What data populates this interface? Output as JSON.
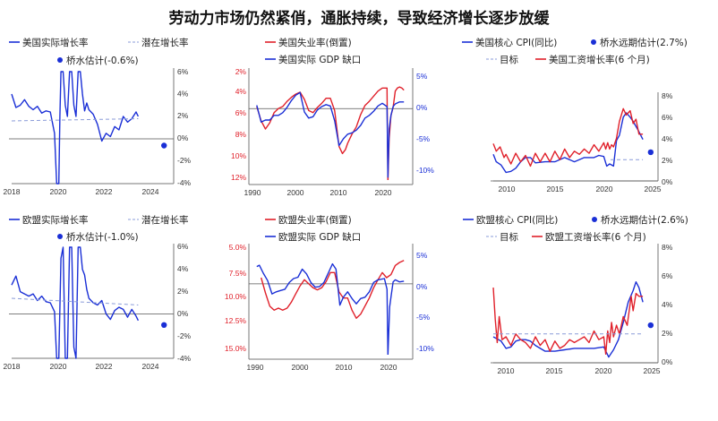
{
  "title": "劳动力市场仍然紧俏，通胀持续，导致经济增长逐步放缓",
  "colors": {
    "blue": "#1a2fd6",
    "red": "#e0202a",
    "axis": "#777777",
    "zero": "#555555",
    "dash": "#8a9bd8"
  },
  "chart_data": [
    {
      "id": "us-growth",
      "type": "line",
      "legend": [
        "美国实际增长率",
        "潜在增长率",
        "桥水估计(-0.6%)"
      ],
      "x_ticks": [
        "2018",
        "2020",
        "2022",
        "2024"
      ],
      "xlim": [
        2018,
        2025.3
      ],
      "y_right_ticks": [
        "6%",
        "4%",
        "2%",
        "0%",
        "-2%",
        "-4%"
      ],
      "ylim_right": [
        -4,
        6
      ],
      "series": [
        {
          "name": "美国实际增长率",
          "color": "blue",
          "style": "solid",
          "x": [
            2018.0,
            2018.2,
            2018.4,
            2018.6,
            2018.8,
            2019.0,
            2019.2,
            2019.4,
            2019.6,
            2019.8,
            2020.0,
            2020.1,
            2020.2,
            2020.25,
            2020.3,
            2020.4,
            2020.5,
            2020.6,
            2020.7,
            2020.8,
            2020.9,
            2021.0,
            2021.1,
            2021.2,
            2021.3,
            2021.4,
            2021.5,
            2021.6,
            2021.8,
            2022.0,
            2022.2,
            2022.4,
            2022.6,
            2022.8,
            2023.0,
            2023.2,
            2023.4,
            2023.6,
            2023.8,
            2023.9
          ],
          "y": [
            4.0,
            2.8,
            3.0,
            3.5,
            2.9,
            2.6,
            2.9,
            2.3,
            2.5,
            2.4,
            0.5,
            -4,
            -4,
            2,
            6,
            6,
            3,
            2,
            6,
            6,
            3,
            2,
            6,
            6,
            4,
            2.5,
            3.2,
            2.6,
            2.2,
            1.3,
            -0.2,
            0.5,
            0.2,
            1.1,
            0.8,
            2.0,
            1.5,
            1.8,
            2.4,
            2.0
          ]
        },
        {
          "name": "潜在增长率",
          "color": "dash",
          "style": "dash",
          "x": [
            2018.0,
            2023.9
          ],
          "y": [
            1.6,
            1.8
          ]
        },
        {
          "name": "桥水估计(-0.6%)",
          "color": "blue",
          "style": "point",
          "x": [
            2025.1
          ],
          "y": [
            -0.6
          ]
        }
      ]
    },
    {
      "id": "us-labor",
      "type": "line",
      "legend": [
        "美国失业率(倒置)",
        "美国实际 GDP 缺口"
      ],
      "x_ticks": [
        "1990",
        "2000",
        "2010",
        "2020"
      ],
      "xlim": [
        1989,
        2025
      ],
      "y_left_ticks": [
        "2%",
        "4%",
        "6%",
        "8%",
        "10%",
        "12%"
      ],
      "ylim_left_inverted": [
        2,
        12.5
      ],
      "y_right_ticks": [
        "5%",
        "0%",
        "-5%",
        "-10%"
      ],
      "ylim_right": [
        -10.5,
        5.5
      ],
      "series": [
        {
          "name": "美国失业率(倒置)",
          "color": "red",
          "axis": "left",
          "x": [
            1990,
            1991,
            1992,
            1993,
            1994,
            1995,
            1996,
            1997,
            1998,
            1999,
            2000,
            2001,
            2002,
            2003,
            2004,
            2005,
            2006,
            2007,
            2008,
            2009,
            2009.8,
            2010.5,
            2011,
            2012,
            2013,
            2014,
            2015,
            2016,
            2017,
            2018,
            2019,
            2020.1,
            2020.3,
            2020.6,
            2021,
            2021.5,
            2022,
            2022.5,
            2023,
            2023.5,
            2024
          ],
          "y": [
            5.4,
            6.8,
            7.6,
            7.0,
            6.0,
            5.6,
            5.4,
            4.9,
            4.5,
            4.2,
            4.0,
            4.7,
            5.8,
            6.0,
            5.5,
            5.1,
            4.6,
            4.6,
            5.8,
            9.3,
            10.0,
            9.6,
            9.0,
            8.1,
            7.4,
            6.2,
            5.3,
            4.9,
            4.4,
            3.9,
            3.6,
            3.6,
            12.8,
            8.5,
            6.3,
            5.5,
            3.9,
            3.6,
            3.5,
            3.6,
            3.8
          ]
        },
        {
          "name": "美国实际 GDP 缺口",
          "color": "blue",
          "axis": "right",
          "x": [
            1990,
            1991,
            1992,
            1993,
            1994,
            1995,
            1996,
            1997,
            1998,
            1999,
            2000,
            2001,
            2002,
            2003,
            2004,
            2005,
            2006,
            2007,
            2008,
            2009,
            2010,
            2011,
            2012,
            2013,
            2014,
            2015,
            2016,
            2017,
            2018,
            2019,
            2020.1,
            2020.3,
            2020.6,
            2021,
            2021.5,
            2022,
            2023,
            2024
          ],
          "y": [
            0.5,
            -2.0,
            -1.7,
            -1.7,
            -1.0,
            -1.0,
            -0.6,
            0.2,
            1.2,
            2.0,
            2.4,
            -0.5,
            -1.4,
            -1.2,
            -0.2,
            0.3,
            0.6,
            0.4,
            -1.8,
            -5.5,
            -4.5,
            -3.8,
            -3.6,
            -3.2,
            -2.5,
            -1.4,
            -1.0,
            -0.4,
            0.4,
            0.8,
            0.3,
            -10.2,
            -3.0,
            -1.0,
            0.3,
            0.7,
            1.0,
            1.0
          ]
        }
      ]
    },
    {
      "id": "us-inflation",
      "type": "line",
      "legend": [
        "美国核心 CPI(同比)",
        "桥水远期估计(2.7%)",
        "目标",
        "美国工资增长率(6 个月)"
      ],
      "x_ticks": [
        "2010",
        "2015",
        "2020",
        "2025"
      ],
      "xlim": [
        2008.7,
        2025
      ],
      "y_right_ticks": [
        "8%",
        "6%",
        "4%",
        "2%",
        "0%"
      ],
      "ylim_right": [
        0,
        8
      ],
      "series": [
        {
          "name": "美国核心 CPI(同比)",
          "color": "blue",
          "x": [
            2008.7,
            2009,
            2009.5,
            2010,
            2010.5,
            2011,
            2011.5,
            2012,
            2012.5,
            2013,
            2014,
            2015,
            2016,
            2017,
            2018,
            2019,
            2019.5,
            2020,
            2020.3,
            2020.6,
            2021,
            2021.3,
            2021.6,
            2022,
            2022.3,
            2022.7,
            2023,
            2023.5,
            2024
          ],
          "y": [
            2.5,
            1.8,
            1.5,
            0.8,
            0.9,
            1.2,
            1.8,
            2.2,
            2.2,
            1.7,
            1.8,
            1.8,
            2.2,
            1.8,
            2.2,
            2.2,
            2.4,
            2.3,
            1.4,
            1.6,
            1.4,
            3.8,
            4.3,
            6.0,
            6.4,
            6.0,
            5.6,
            4.8,
            3.9
          ]
        },
        {
          "name": "美国工资增长率(6 个月)",
          "color": "red",
          "x": [
            2008.7,
            2009,
            2009.4,
            2009.8,
            2010,
            2010.5,
            2011,
            2011.5,
            2012,
            2012.5,
            2013,
            2013.5,
            2014,
            2014.5,
            2015,
            2015.5,
            2016,
            2016.5,
            2017,
            2017.5,
            2018,
            2018.5,
            2019,
            2019.5,
            2020,
            2020.2,
            2020.4,
            2020.6,
            2020.8,
            2021,
            2021.3,
            2021.6,
            2022,
            2022.3,
            2022.7,
            2023,
            2023.3,
            2023.6,
            2024
          ],
          "y": [
            3.5,
            2.8,
            3.2,
            2.2,
            2.5,
            1.6,
            2.6,
            1.8,
            2.4,
            1.4,
            2.6,
            1.8,
            2.6,
            1.8,
            2.8,
            2.0,
            3.0,
            2.2,
            2.8,
            2.5,
            3.0,
            2.6,
            3.4,
            2.8,
            3.6,
            3.0,
            3.6,
            3.0,
            3.4,
            3.2,
            4.0,
            5.6,
            6.8,
            6.2,
            6.6,
            5.4,
            5.8,
            4.4,
            4.4
          ]
        },
        {
          "name": "目标",
          "color": "dash",
          "style": "dash",
          "x": [
            2020.7,
            2024
          ],
          "y": [
            2,
            2
          ]
        },
        {
          "name": "桥水远期估计(2.7%)",
          "color": "blue",
          "style": "point",
          "x": [
            2024.8
          ],
          "y": [
            2.7
          ]
        }
      ]
    },
    {
      "id": "eu-growth",
      "type": "line",
      "legend": [
        "欧盟实际增长率",
        "潜在增长率",
        "桥水估计(-1.0%)"
      ],
      "x_ticks": [
        "2018",
        "2020",
        "2022",
        "2024"
      ],
      "xlim": [
        2018,
        2025.3
      ],
      "y_right_ticks": [
        "6%",
        "4%",
        "2%",
        "0%",
        "-2%",
        "-4%"
      ],
      "ylim_right": [
        -4,
        6
      ],
      "series": [
        {
          "name": "欧盟实际增长率",
          "color": "blue",
          "style": "solid",
          "x": [
            2018.0,
            2018.2,
            2018.4,
            2018.6,
            2018.8,
            2019.0,
            2019.2,
            2019.4,
            2019.6,
            2019.8,
            2020.0,
            2020.1,
            2020.2,
            2020.3,
            2020.4,
            2020.5,
            2020.6,
            2020.7,
            2020.8,
            2020.9,
            2021.0,
            2021.1,
            2021.2,
            2021.3,
            2021.4,
            2021.5,
            2021.6,
            2021.8,
            2022.0,
            2022.2,
            2022.4,
            2022.6,
            2022.8,
            2023.0,
            2023.2,
            2023.4,
            2023.6,
            2023.8,
            2023.9
          ],
          "y": [
            2.6,
            3.4,
            2.0,
            1.8,
            1.6,
            1.8,
            1.2,
            1.6,
            1.1,
            1.0,
            0.2,
            -4,
            -4,
            5,
            6,
            -4,
            -4,
            6,
            6,
            -3,
            -4,
            6,
            6,
            4,
            3.5,
            2.2,
            1.4,
            1.0,
            0.8,
            1.2,
            0.0,
            -0.5,
            0.3,
            0.6,
            0.4,
            -0.3,
            0.4,
            -0.2,
            -0.6
          ]
        },
        {
          "name": "潜在增长率",
          "color": "dash",
          "style": "dash",
          "x": [
            2018.0,
            2023.9
          ],
          "y": [
            1.4,
            0.8
          ]
        },
        {
          "name": "桥水估计(-1.0%)",
          "color": "blue",
          "style": "point",
          "x": [
            2025.1
          ],
          "y": [
            -1.0
          ]
        }
      ]
    },
    {
      "id": "eu-labor",
      "type": "line",
      "legend": [
        "欧盟失业率(倒置)",
        "欧盟实际 GDP 缺口"
      ],
      "x_ticks": [
        "1990",
        "2000",
        "2010",
        "2020"
      ],
      "xlim": [
        1989,
        2025
      ],
      "y_left_ticks": [
        "5.0%",
        "7.5%",
        "10.0%",
        "12.5%",
        "15.0%"
      ],
      "ylim_left_inverted": [
        5,
        15.5
      ],
      "y_right_ticks": [
        "5%",
        "0%",
        "-5%",
        "-10%"
      ],
      "ylim_right": [
        -10.5,
        5.5
      ],
      "series": [
        {
          "name": "欧盟失业率(倒置)",
          "color": "red",
          "axis": "left",
          "x": [
            1991,
            1992,
            1993,
            1994,
            1995,
            1996,
            1997,
            1998,
            1999,
            2000,
            2001,
            2002,
            2003,
            2004,
            2005,
            2006,
            2007,
            2008,
            2009,
            2010,
            2011,
            2012,
            2013,
            2014,
            2015,
            2016,
            2017,
            2018,
            2019,
            2020,
            2021,
            2022,
            2023,
            2024
          ],
          "y": [
            8.0,
            9.5,
            10.8,
            11.2,
            11.0,
            11.2,
            11.0,
            10.4,
            9.6,
            8.8,
            8.2,
            8.6,
            9.0,
            9.2,
            9.0,
            8.4,
            7.5,
            7.5,
            9.4,
            10.0,
            10.0,
            11.2,
            12.0,
            11.6,
            10.8,
            10.0,
            9.0,
            8.2,
            7.5,
            8.0,
            7.7,
            6.8,
            6.5,
            6.3
          ]
        },
        {
          "name": "欧盟实际 GDP 缺口",
          "color": "blue",
          "axis": "right",
          "x": [
            1990,
            1990.6,
            1991.5,
            1992.5,
            1993.5,
            1994.5,
            1995.5,
            1996.5,
            1997.5,
            1998.5,
            1999.5,
            2000.5,
            2001.5,
            2002.5,
            2003.5,
            2004.5,
            2005.5,
            2006.5,
            2007.5,
            2008.3,
            2009.2,
            2010,
            2011,
            2012,
            2013,
            2014,
            2015,
            2016,
            2017,
            2018,
            2019.5,
            2020.1,
            2020.3,
            2020.7,
            2021,
            2021.5,
            2022,
            2023,
            2024
          ],
          "y": [
            2.6,
            2.8,
            1.6,
            0.5,
            -1.5,
            -1.2,
            -1.0,
            -0.8,
            0.2,
            0.8,
            1.0,
            2.2,
            1.5,
            0.2,
            -0.5,
            -0.4,
            0.2,
            1.6,
            3.0,
            2.2,
            -3.2,
            -2.0,
            -1.2,
            -2.2,
            -3.0,
            -2.2,
            -2.0,
            -1.2,
            0.2,
            0.6,
            0.8,
            -0.8,
            -10.8,
            -3.5,
            -2.0,
            0.3,
            0.6,
            0.3,
            0.4
          ]
        }
      ]
    },
    {
      "id": "eu-inflation",
      "type": "line",
      "legend": [
        "欧盟核心 CPI(同比)",
        "桥水远期估计(2.6%)",
        "目标",
        "欧盟工资增长率(6 个月)"
      ],
      "x_ticks": [
        "2010",
        "2015",
        "2020",
        "2025"
      ],
      "xlim": [
        2008.7,
        2025
      ],
      "y_right_ticks": [
        "8%",
        "6%",
        "4%",
        "2%",
        "0%"
      ],
      "ylim_right": [
        0,
        8
      ],
      "series": [
        {
          "name": "欧盟核心 CPI(同比)",
          "color": "blue",
          "x": [
            2008.7,
            2009.5,
            2010,
            2010.5,
            2011,
            2011.5,
            2012,
            2012.5,
            2013,
            2013.5,
            2014,
            2014.5,
            2015,
            2016,
            2017,
            2018,
            2019,
            2020,
            2020.5,
            2021,
            2021.5,
            2022,
            2022.5,
            2023,
            2023.3,
            2023.6,
            2024
          ],
          "y": [
            1.8,
            1.5,
            1.0,
            1.1,
            1.5,
            1.6,
            1.6,
            1.5,
            1.2,
            1.0,
            0.8,
            0.8,
            0.8,
            0.9,
            1.0,
            1.0,
            1.0,
            1.1,
            0.4,
            0.9,
            1.6,
            2.8,
            4.2,
            5.0,
            5.6,
            5.2,
            4.2
          ]
        },
        {
          "name": "欧盟工资增长率(6 个月)",
          "color": "red",
          "x": [
            2008.7,
            2008.9,
            2009.1,
            2009.3,
            2009.6,
            2010,
            2010.5,
            2011,
            2011.5,
            2012,
            2012.5,
            2013,
            2013.5,
            2014,
            2014.5,
            2015,
            2015.5,
            2016,
            2016.5,
            2017,
            2017.5,
            2018,
            2018.5,
            2019,
            2019.5,
            2020,
            2020.2,
            2020.4,
            2020.6,
            2020.8,
            2021,
            2021.3,
            2021.6,
            2022,
            2022.4,
            2022.8,
            2023,
            2023.3,
            2023.6,
            2024
          ],
          "y": [
            5.2,
            3.0,
            1.4,
            3.2,
            1.6,
            1.8,
            1.2,
            2.0,
            1.6,
            1.4,
            1.0,
            1.8,
            1.2,
            1.6,
            0.8,
            1.5,
            1.0,
            1.2,
            1.6,
            1.4,
            1.6,
            1.8,
            1.4,
            2.2,
            1.6,
            1.8,
            0.6,
            2.2,
            1.4,
            2.8,
            1.8,
            2.6,
            2.0,
            3.2,
            2.6,
            4.6,
            3.6,
            4.8,
            4.6,
            4.6
          ]
        },
        {
          "name": "目标",
          "color": "dash",
          "style": "dash",
          "x": [
            2008.7,
            2024
          ],
          "y": [
            2,
            2
          ]
        },
        {
          "name": "桥水远期估计(2.6%)",
          "color": "blue",
          "style": "point",
          "x": [
            2024.8
          ],
          "y": [
            2.6
          ]
        }
      ]
    }
  ]
}
